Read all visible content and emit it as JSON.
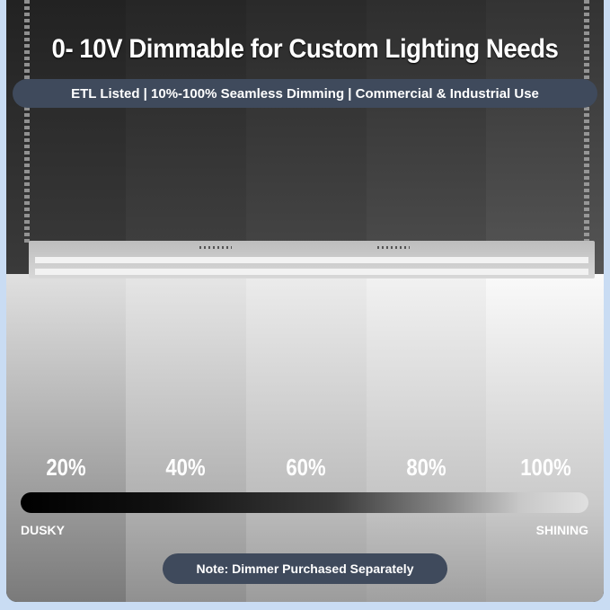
{
  "title": "0- 10V Dimmable for Custom Lighting Needs",
  "subtitle": "ETL Listed | 10%-100% Seamless Dimming | Commercial & Industrial Use",
  "levels": [
    "20%",
    "40%",
    "60%",
    "80%",
    "100%"
  ],
  "brightness_scale": {
    "min_label": "DUSKY",
    "max_label": "SHINING"
  },
  "note": "Note: Dimmer Purchased Separately",
  "colors": {
    "banner": "#3f4a5c",
    "border": "#c9dcf3"
  }
}
